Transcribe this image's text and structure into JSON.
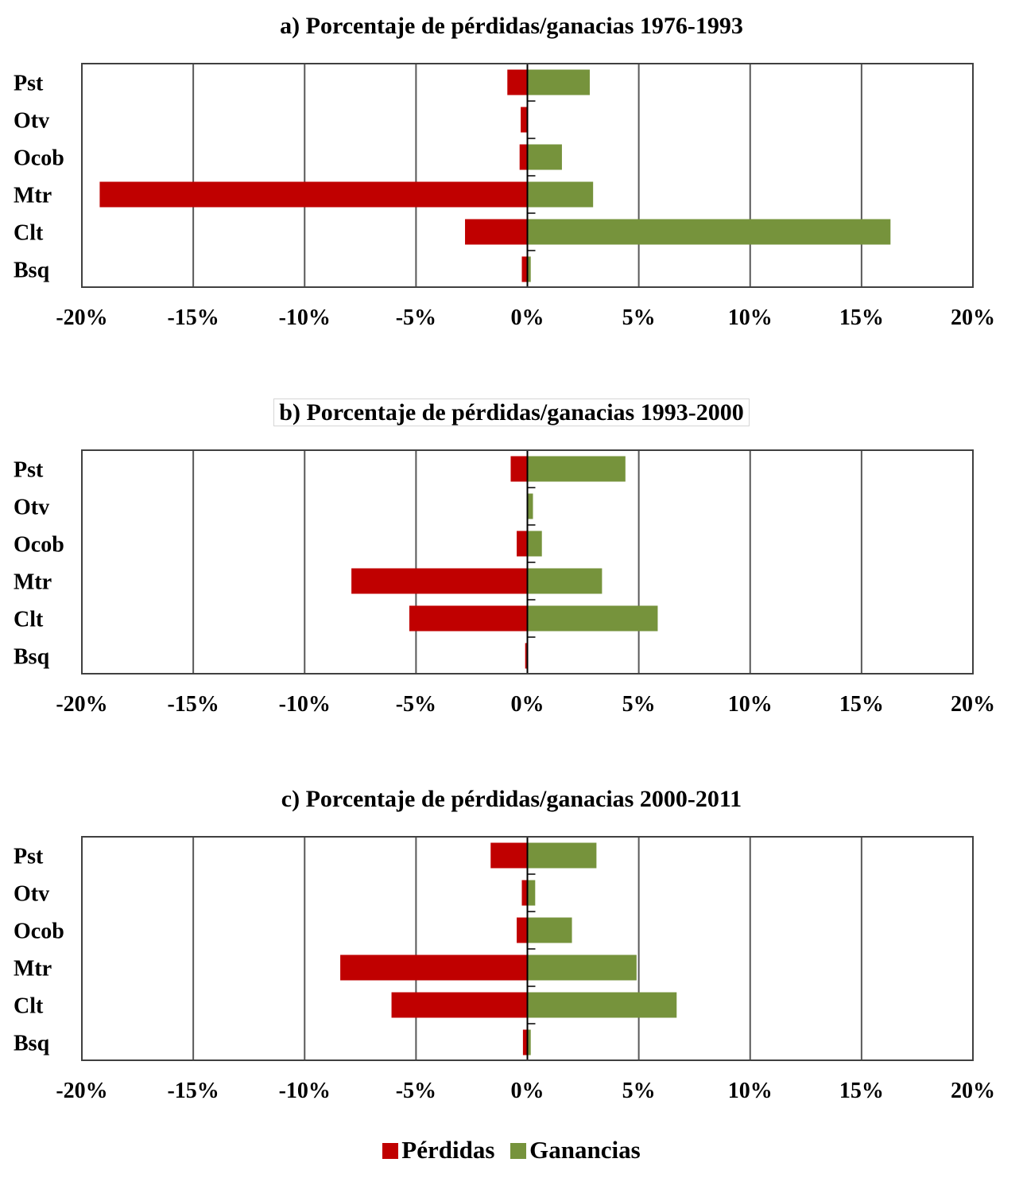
{
  "colors": {
    "loss": "#c00000",
    "gain": "#76933c",
    "grid": "#595959",
    "frame": "#404040"
  },
  "legend": {
    "loss_label": "Pérdidas",
    "gain_label": "Ganancias"
  },
  "chart_data": [
    {
      "type": "bar",
      "orientation": "horizontal",
      "title": "a) Porcentaje de pérdidas/ganacias 1976-1993",
      "categories": [
        "Pst",
        "Otv",
        "Ocob",
        "Mtr",
        "Clt",
        "Bsq"
      ],
      "xlim": [
        -0.2,
        0.2
      ],
      "xticks": [
        "-20%",
        "-15%",
        "-10%",
        "-5%",
        "0%",
        "5%",
        "10%",
        "15%",
        "20%"
      ],
      "grid": "vertical",
      "legend_position": "bottom",
      "series": [
        {
          "name": "Pérdidas",
          "values": [
            -0.009,
            -0.003,
            -0.0035,
            -0.192,
            -0.028,
            -0.0025
          ]
        },
        {
          "name": "Ganancias",
          "values": [
            0.028,
            0.0,
            0.0155,
            0.0295,
            0.163,
            0.0015
          ]
        }
      ]
    },
    {
      "type": "bar",
      "orientation": "horizontal",
      "title": "b) Porcentaje de pérdidas/ganacias 1993-2000",
      "categories": [
        "Pst",
        "Otv",
        "Ocob",
        "Mtr",
        "Clt",
        "Bsq"
      ],
      "xlim": [
        -0.2,
        0.2
      ],
      "xticks": [
        "-20%",
        "-15%",
        "-10%",
        "-5%",
        "0%",
        "5%",
        "10%",
        "15%",
        "20%"
      ],
      "grid": "vertical",
      "legend_position": "bottom",
      "series": [
        {
          "name": "Pérdidas",
          "values": [
            -0.0075,
            0.0,
            -0.0048,
            -0.079,
            -0.053,
            -0.001
          ]
        },
        {
          "name": "Ganancias",
          "values": [
            0.044,
            0.0025,
            0.0065,
            0.0335,
            0.0585,
            0.0
          ]
        }
      ]
    },
    {
      "type": "bar",
      "orientation": "horizontal",
      "title": "c) Porcentaje de pérdidas/ganacias 2000-2011",
      "categories": [
        "Pst",
        "Otv",
        "Ocob",
        "Mtr",
        "Clt",
        "Bsq"
      ],
      "xlim": [
        -0.2,
        0.2
      ],
      "xticks": [
        "-20%",
        "-15%",
        "-10%",
        "-5%",
        "0%",
        "5%",
        "10%",
        "15%",
        "20%"
      ],
      "grid": "vertical",
      "legend_position": "bottom",
      "series": [
        {
          "name": "Pérdidas",
          "values": [
            -0.0165,
            -0.0025,
            -0.0048,
            -0.084,
            -0.061,
            -0.002
          ]
        },
        {
          "name": "Ganancias",
          "values": [
            0.031,
            0.0035,
            0.02,
            0.049,
            0.067,
            0.0015
          ]
        }
      ]
    }
  ]
}
